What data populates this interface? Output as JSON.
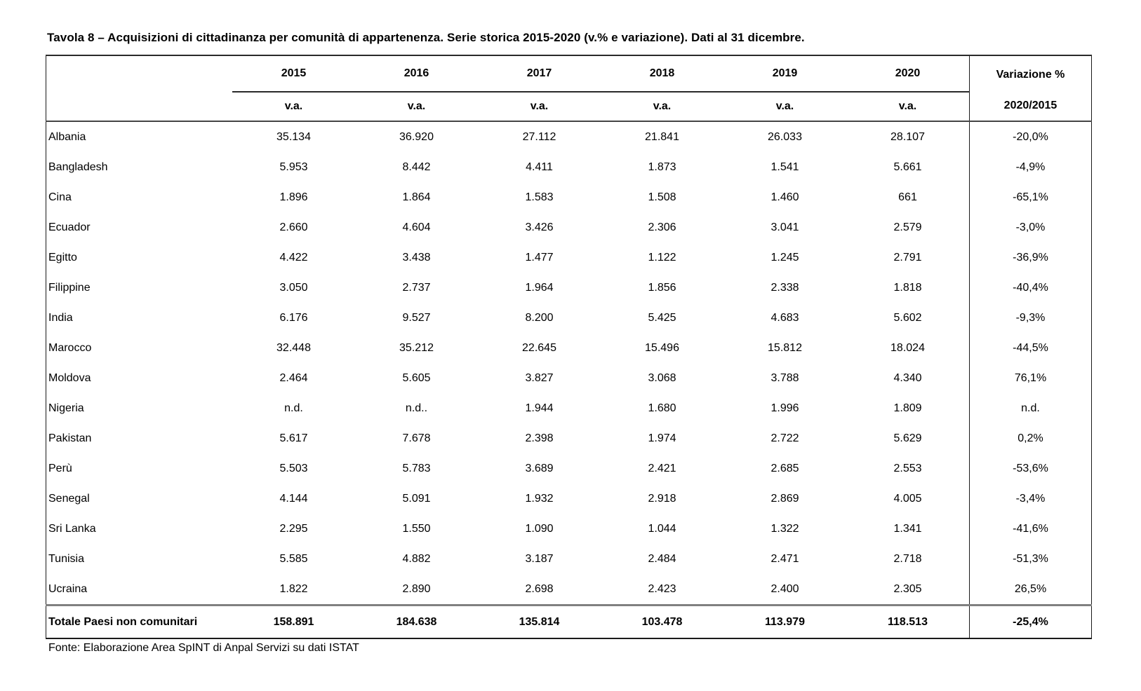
{
  "title": "Tavola 8 – Acquisizioni di cittadinanza per comunità di appartenenza. Serie storica 2015-2020 (v.% e variazione). Dati al 31 dicembre.",
  "table": {
    "years": [
      "2015",
      "2016",
      "2017",
      "2018",
      "2019",
      "2020"
    ],
    "unit_label": "v.a.",
    "variation_header_line1": "Variazione %",
    "variation_header_line2": "2020/2015",
    "rows": [
      {
        "label": "Albania",
        "values": [
          "35.134",
          "36.920",
          "27.112",
          "21.841",
          "26.033",
          "28.107"
        ],
        "variation": "-20,0%"
      },
      {
        "label": "Bangladesh",
        "values": [
          "5.953",
          "8.442",
          "4.411",
          "1.873",
          "1.541",
          "5.661"
        ],
        "variation": "-4,9%"
      },
      {
        "label": "Cina",
        "values": [
          "1.896",
          "1.864",
          "1.583",
          "1.508",
          "1.460",
          "661"
        ],
        "variation": "-65,1%"
      },
      {
        "label": "Ecuador",
        "values": [
          "2.660",
          "4.604",
          "3.426",
          "2.306",
          "3.041",
          "2.579"
        ],
        "variation": "-3,0%"
      },
      {
        "label": "Egitto",
        "values": [
          "4.422",
          "3.438",
          "1.477",
          "1.122",
          "1.245",
          "2.791"
        ],
        "variation": "-36,9%"
      },
      {
        "label": "Filippine",
        "values": [
          "3.050",
          "2.737",
          "1.964",
          "1.856",
          "2.338",
          "1.818"
        ],
        "variation": "-40,4%"
      },
      {
        "label": "India",
        "values": [
          "6.176",
          "9.527",
          "8.200",
          "5.425",
          "4.683",
          "5.602"
        ],
        "variation": "-9,3%"
      },
      {
        "label": "Marocco",
        "values": [
          "32.448",
          "35.212",
          "22.645",
          "15.496",
          "15.812",
          "18.024"
        ],
        "variation": "-44,5%"
      },
      {
        "label": "Moldova",
        "values": [
          "2.464",
          "5.605",
          "3.827",
          "3.068",
          "3.788",
          "4.340"
        ],
        "variation": "76,1%"
      },
      {
        "label": "Nigeria",
        "values": [
          "n.d.",
          "n.d..",
          "1.944",
          "1.680",
          "1.996",
          "1.809"
        ],
        "variation": "n.d."
      },
      {
        "label": "Pakistan",
        "values": [
          "5.617",
          "7.678",
          "2.398",
          "1.974",
          "2.722",
          "5.629"
        ],
        "variation": "0,2%"
      },
      {
        "label": "Perù",
        "values": [
          "5.503",
          "5.783",
          "3.689",
          "2.421",
          "2.685",
          "2.553"
        ],
        "variation": "-53,6%"
      },
      {
        "label": "Senegal",
        "values": [
          "4.144",
          "5.091",
          "1.932",
          "2.918",
          "2.869",
          "4.005"
        ],
        "variation": "-3,4%"
      },
      {
        "label": "Sri Lanka",
        "values": [
          "2.295",
          "1.550",
          "1.090",
          "1.044",
          "1.322",
          "1.341"
        ],
        "variation": "-41,6%"
      },
      {
        "label": "Tunisia",
        "values": [
          "5.585",
          "4.882",
          "3.187",
          "2.484",
          "2.471",
          "2.718"
        ],
        "variation": "-51,3%"
      },
      {
        "label": "Ucraina",
        "values": [
          "1.822",
          "2.890",
          "2.698",
          "2.423",
          "2.400",
          "2.305"
        ],
        "variation": "26,5%"
      }
    ],
    "total": {
      "label": "Totale Paesi non comunitari",
      "values": [
        "158.891",
        "184.638",
        "135.814",
        "103.478",
        "113.979",
        "118.513"
      ],
      "variation": "-25,4%"
    }
  },
  "source": "Fonte: Elaborazione Area SpINT di Anpal Servizi su dati ISTAT",
  "colors": {
    "background": "#ffffff",
    "text": "#000000",
    "table_border": "#1a1a1a",
    "header_rule": "#444444",
    "total_separator": "#808080"
  }
}
